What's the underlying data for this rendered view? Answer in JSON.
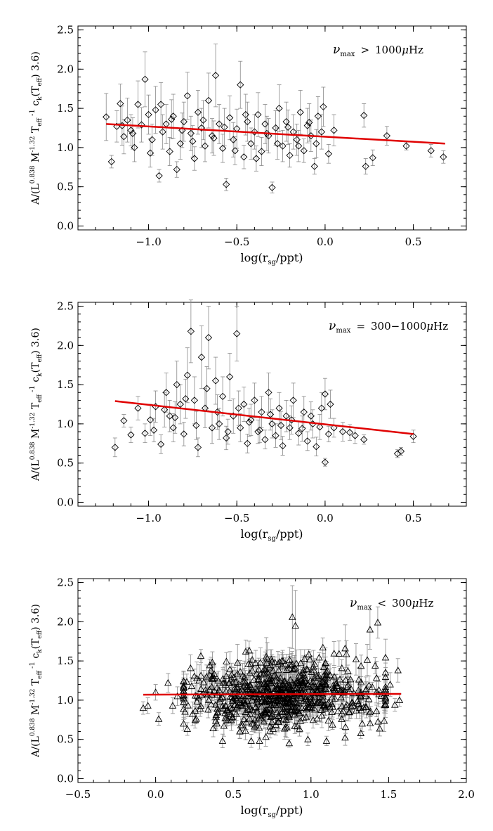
{
  "chart_data": [
    {
      "type": "scatter",
      "marker": "diamond",
      "annotation": "ν_max > 1000μHz",
      "xlabel": "log(r_sg/ppt)",
      "ylabel": "A/(L^0.838 M^-1.32 T_eff^-1 c_k(T_eff) 3.6)",
      "xlim": [
        -1.4,
        0.8
      ],
      "ylim": [
        -0.05,
        2.55
      ],
      "xticks": [
        -1.0,
        -0.5,
        0.0,
        0.5
      ],
      "yticks": [
        0.0,
        0.5,
        1.0,
        1.5,
        2.0,
        2.5
      ],
      "fit_line": {
        "x": [
          -1.24,
          0.68
        ],
        "y": [
          1.3,
          1.05
        ],
        "color": "#e00000"
      },
      "points": [
        [
          -1.24,
          1.39,
          0.3
        ],
        [
          -1.21,
          0.82,
          0.08
        ],
        [
          -1.18,
          1.27,
          0.2
        ],
        [
          -1.16,
          1.56,
          0.25
        ],
        [
          -1.14,
          1.14,
          0.22
        ],
        [
          -1.12,
          1.35,
          0.28
        ],
        [
          -1.1,
          1.22,
          0.2
        ],
        [
          -1.08,
          1.0,
          0.18
        ],
        [
          -1.06,
          1.55,
          0.3
        ],
        [
          -1.04,
          1.29,
          0.22
        ],
        [
          -1.02,
          1.87,
          0.35
        ],
        [
          -1.0,
          1.42,
          0.25
        ],
        [
          -0.98,
          1.1,
          0.2
        ],
        [
          -0.96,
          1.48,
          0.3
        ],
        [
          -0.94,
          0.64,
          0.08
        ],
        [
          -0.92,
          1.2,
          0.22
        ],
        [
          -0.9,
          1.3,
          0.25
        ],
        [
          -0.88,
          0.95,
          0.18
        ],
        [
          -0.86,
          1.4,
          0.28
        ],
        [
          -0.84,
          0.72,
          0.1
        ],
        [
          -0.82,
          1.05,
          0.2
        ],
        [
          -0.8,
          1.33,
          0.25
        ],
        [
          -0.78,
          1.66,
          0.3
        ],
        [
          -0.76,
          1.18,
          0.22
        ],
        [
          -0.74,
          0.86,
          0.15
        ],
        [
          -0.72,
          1.45,
          0.28
        ],
        [
          -0.7,
          1.25,
          0.25
        ],
        [
          -0.68,
          1.02,
          0.2
        ],
        [
          -0.66,
          1.6,
          0.35
        ],
        [
          -0.64,
          1.15,
          0.22
        ],
        [
          -0.62,
          1.92,
          0.4
        ],
        [
          -0.6,
          1.3,
          0.25
        ],
        [
          -0.58,
          0.99,
          0.18
        ],
        [
          -0.56,
          0.53,
          0.08
        ],
        [
          -0.54,
          1.38,
          0.28
        ],
        [
          -0.52,
          1.1,
          0.22
        ],
        [
          -0.5,
          1.24,
          0.25
        ],
        [
          -0.48,
          1.8,
          0.3
        ],
        [
          -0.46,
          0.88,
          0.15
        ],
        [
          -0.44,
          1.33,
          0.25
        ],
        [
          -0.42,
          1.05,
          0.2
        ],
        [
          -0.4,
          1.2,
          0.22
        ],
        [
          -0.38,
          1.42,
          0.28
        ],
        [
          -0.36,
          0.95,
          0.18
        ],
        [
          -0.34,
          1.3,
          0.25
        ],
        [
          -0.32,
          1.15,
          0.22
        ],
        [
          -0.3,
          0.49,
          0.07
        ],
        [
          -0.28,
          1.25,
          0.22
        ],
        [
          -0.26,
          1.5,
          0.3
        ],
        [
          -0.24,
          1.02,
          0.2
        ],
        [
          -0.22,
          1.33,
          0.25
        ],
        [
          -0.2,
          0.9,
          0.15
        ],
        [
          -0.18,
          1.2,
          0.22
        ],
        [
          -0.16,
          1.1,
          0.2
        ],
        [
          -0.14,
          1.45,
          0.28
        ],
        [
          -0.12,
          0.96,
          0.15
        ],
        [
          -0.1,
          1.28,
          0.22
        ],
        [
          -0.08,
          1.15,
          0.2
        ],
        [
          -0.06,
          0.76,
          0.1
        ],
        [
          -0.04,
          1.4,
          0.25
        ],
        [
          -0.02,
          1.2,
          0.22
        ],
        [
          0.02,
          0.92,
          0.12
        ],
        [
          0.05,
          1.22,
          0.2
        ],
        [
          0.22,
          1.41,
          0.15
        ],
        [
          0.23,
          0.76,
          0.1
        ],
        [
          0.27,
          0.87,
          0.1
        ],
        [
          0.35,
          1.15,
          0.12
        ],
        [
          0.46,
          1.02,
          0.05
        ],
        [
          0.6,
          0.96,
          0.08
        ],
        [
          0.67,
          0.88,
          0.08
        ],
        [
          -1.15,
          1.28,
          0.25
        ],
        [
          -1.09,
          1.18,
          0.2
        ],
        [
          -0.99,
          0.93,
          0.18
        ],
        [
          -0.93,
          1.55,
          0.28
        ],
        [
          -0.87,
          1.36,
          0.25
        ],
        [
          -0.81,
          1.22,
          0.22
        ],
        [
          -0.75,
          1.08,
          0.2
        ],
        [
          -0.69,
          1.35,
          0.25
        ],
        [
          -0.63,
          1.12,
          0.22
        ],
        [
          -0.57,
          1.26,
          0.24
        ],
        [
          -0.51,
          0.96,
          0.18
        ],
        [
          -0.45,
          1.42,
          0.26
        ],
        [
          -0.39,
          0.86,
          0.16
        ],
        [
          -0.33,
          1.18,
          0.22
        ],
        [
          -0.27,
          1.05,
          0.2
        ],
        [
          -0.21,
          1.26,
          0.22
        ],
        [
          -0.15,
          1.02,
          0.2
        ],
        [
          -0.09,
          1.32,
          0.24
        ],
        [
          -0.05,
          1.05,
          0.18
        ],
        [
          -0.01,
          1.52,
          0.25
        ]
      ]
    },
    {
      "type": "scatter",
      "marker": "diamond",
      "annotation": "ν_max = 300-1000μHz",
      "xlabel": "log(r_sg/ppt)",
      "ylabel": "A/(L^0.838 M^-1.32 T_eff^-1 c_k(T_eff) 3.6)",
      "xlim": [
        -1.4,
        0.8
      ],
      "ylim": [
        -0.05,
        2.55
      ],
      "xticks": [
        -1.0,
        -0.5,
        0.0,
        0.5
      ],
      "yticks": [
        0.0,
        0.5,
        1.0,
        1.5,
        2.0,
        2.5
      ],
      "fit_line": {
        "x": [
          -1.19,
          0.5
        ],
        "y": [
          1.29,
          0.87
        ],
        "color": "#e00000"
      },
      "points": [
        [
          -1.19,
          0.7,
          0.12
        ],
        [
          -1.14,
          1.04,
          0.08
        ],
        [
          -1.1,
          0.86,
          0.1
        ],
        [
          -1.06,
          1.2,
          0.15
        ],
        [
          -1.02,
          0.88,
          0.12
        ],
        [
          -0.99,
          1.05,
          0.2
        ],
        [
          -0.96,
          1.22,
          0.2
        ],
        [
          -0.93,
          0.74,
          0.12
        ],
        [
          -0.9,
          1.4,
          0.25
        ],
        [
          -0.88,
          1.1,
          0.2
        ],
        [
          -0.86,
          0.95,
          0.18
        ],
        [
          -0.84,
          1.5,
          0.3
        ],
        [
          -0.82,
          1.25,
          0.25
        ],
        [
          -0.8,
          0.87,
          0.15
        ],
        [
          -0.78,
          1.62,
          0.35
        ],
        [
          -0.76,
          2.18,
          0.4
        ],
        [
          -0.74,
          1.3,
          0.3
        ],
        [
          -0.72,
          0.7,
          0.12
        ],
        [
          -0.7,
          1.85,
          0.4
        ],
        [
          -0.68,
          1.2,
          0.25
        ],
        [
          -0.66,
          2.1,
          0.4
        ],
        [
          -0.64,
          0.95,
          0.2
        ],
        [
          -0.62,
          1.55,
          0.3
        ],
        [
          -0.6,
          1.0,
          0.2
        ],
        [
          -0.58,
          1.35,
          0.25
        ],
        [
          -0.56,
          0.82,
          0.15
        ],
        [
          -0.54,
          1.6,
          0.3
        ],
        [
          -0.52,
          1.1,
          0.22
        ],
        [
          -0.5,
          2.15,
          0.35
        ],
        [
          -0.48,
          0.95,
          0.18
        ],
        [
          -0.46,
          1.25,
          0.22
        ],
        [
          -0.44,
          0.75,
          0.12
        ],
        [
          -0.42,
          1.05,
          0.2
        ],
        [
          -0.4,
          1.3,
          0.22
        ],
        [
          -0.38,
          0.9,
          0.15
        ],
        [
          -0.36,
          1.15,
          0.2
        ],
        [
          -0.34,
          0.8,
          0.12
        ],
        [
          -0.32,
          1.4,
          0.25
        ],
        [
          -0.3,
          1.0,
          0.18
        ],
        [
          -0.28,
          0.85,
          0.15
        ],
        [
          -0.26,
          1.2,
          0.2
        ],
        [
          -0.24,
          0.72,
          0.12
        ],
        [
          -0.22,
          1.1,
          0.2
        ],
        [
          -0.2,
          0.95,
          0.15
        ],
        [
          -0.18,
          1.3,
          0.22
        ],
        [
          -0.15,
          0.88,
          0.15
        ],
        [
          -0.12,
          1.15,
          0.2
        ],
        [
          -0.1,
          0.78,
          0.12
        ],
        [
          -0.07,
          1.0,
          0.18
        ],
        [
          -0.05,
          0.71,
          0.12
        ],
        [
          -0.02,
          1.2,
          0.2
        ],
        [
          0.0,
          1.38,
          0.2
        ],
        [
          0.0,
          0.51,
          0.05
        ],
        [
          0.02,
          0.87,
          0.1
        ],
        [
          0.05,
          0.95,
          0.12
        ],
        [
          0.14,
          0.89,
          0.1
        ],
        [
          0.17,
          0.85,
          0.1
        ],
        [
          0.22,
          0.8,
          0.06
        ],
        [
          0.41,
          0.62,
          0.05
        ],
        [
          0.43,
          0.65,
          0.05
        ],
        [
          0.5,
          0.84,
          0.08
        ],
        [
          -0.97,
          0.92,
          0.15
        ],
        [
          -0.91,
          1.18,
          0.22
        ],
        [
          -0.85,
          1.08,
          0.2
        ],
        [
          -0.79,
          1.32,
          0.25
        ],
        [
          -0.73,
          0.98,
          0.18
        ],
        [
          -0.67,
          1.45,
          0.28
        ],
        [
          -0.61,
          1.15,
          0.22
        ],
        [
          -0.55,
          0.9,
          0.16
        ],
        [
          -0.49,
          1.2,
          0.22
        ],
        [
          -0.43,
          1.02,
          0.18
        ],
        [
          -0.37,
          0.92,
          0.16
        ],
        [
          -0.31,
          1.12,
          0.2
        ],
        [
          -0.25,
          0.98,
          0.18
        ],
        [
          -0.19,
          1.05,
          0.18
        ],
        [
          -0.13,
          0.94,
          0.16
        ],
        [
          -0.08,
          1.1,
          0.18
        ],
        [
          -0.03,
          0.96,
          0.16
        ],
        [
          0.03,
          1.25,
          0.18
        ],
        [
          0.1,
          0.9,
          0.12
        ]
      ]
    },
    {
      "type": "scatter",
      "marker": "triangle",
      "annotation": "ν_max < 300μHz",
      "xlabel": "log(r_sg/ppt)",
      "ylabel": "A/(L^0.838 M^-1.32 T_eff^-1 c_k(T_eff) 3.6)",
      "xlim": [
        -0.5,
        2.0
      ],
      "ylim": [
        -0.05,
        2.55
      ],
      "xticks": [
        -0.5,
        0.0,
        0.5,
        1.0,
        1.5,
        2.0
      ],
      "yticks": [
        0.0,
        0.5,
        1.0,
        1.5,
        2.0,
        2.5
      ],
      "fit_line": {
        "x": [
          -0.08,
          1.58
        ],
        "y": [
          1.07,
          1.08
        ],
        "color": "#e00000"
      },
      "generated_cloud": {
        "count": 720,
        "x_mean": 0.82,
        "x_sd": 0.3,
        "y_mean": 1.07,
        "y_sd": 0.22,
        "x_range": [
          0.18,
          1.48
        ],
        "y_range": [
          0.48,
          1.85
        ],
        "seed": 7
      },
      "points": [
        [
          -0.08,
          0.9,
          0.08
        ],
        [
          -0.05,
          0.93,
          0.1
        ],
        [
          0.0,
          1.1,
          0.1
        ],
        [
          0.02,
          0.76,
          0.08
        ],
        [
          0.08,
          1.22,
          0.12
        ],
        [
          0.11,
          0.93,
          0.1
        ],
        [
          0.14,
          1.05,
          0.12
        ],
        [
          0.88,
          2.06,
          0.4
        ],
        [
          0.9,
          1.95,
          0.45
        ],
        [
          1.22,
          1.66,
          0.3
        ],
        [
          1.29,
          1.52,
          0.2
        ],
        [
          1.38,
          1.9,
          0.25
        ],
        [
          1.43,
          1.99,
          0.2
        ],
        [
          1.48,
          1.12,
          0.15
        ],
        [
          1.51,
          1.2,
          0.15
        ],
        [
          1.54,
          0.94,
          0.08
        ],
        [
          1.56,
          1.38,
          0.15
        ],
        [
          1.57,
          1.0,
          0.08
        ],
        [
          0.62,
          0.7,
          0.1
        ],
        [
          0.98,
          0.5,
          0.08
        ],
        [
          0.86,
          0.45,
          0.05
        ],
        [
          0.4,
          0.85,
          0.1
        ],
        [
          0.28,
          1.25,
          0.2
        ],
        [
          1.1,
          0.48,
          0.06
        ],
        [
          1.33,
          0.7,
          0.1
        ]
      ]
    }
  ]
}
